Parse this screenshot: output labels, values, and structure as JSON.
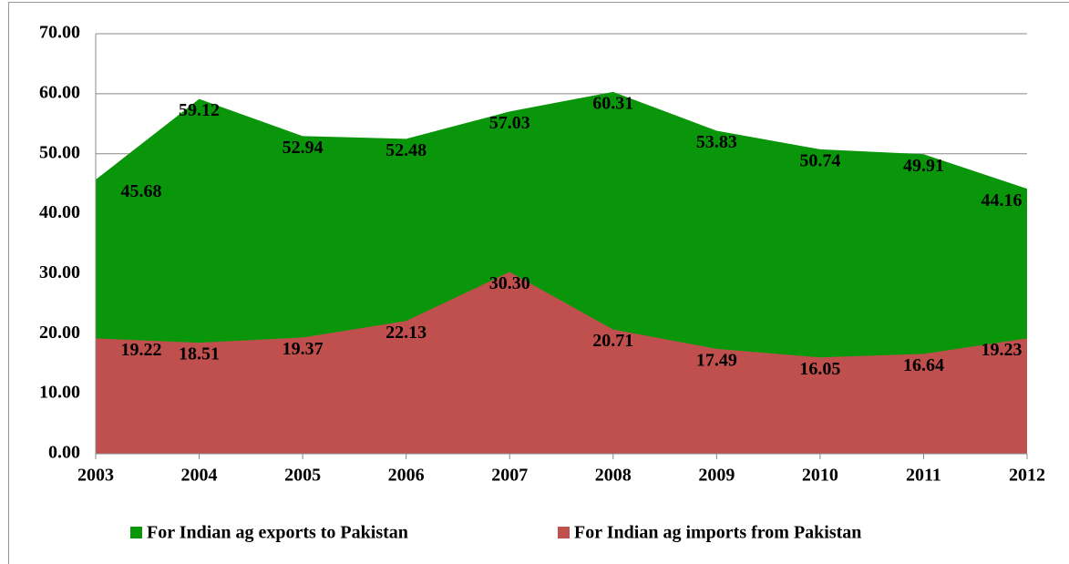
{
  "chart_data": {
    "type": "area",
    "categories": [
      "2003",
      "2004",
      "2005",
      "2006",
      "2007",
      "2008",
      "2009",
      "2010",
      "2011",
      "2012"
    ],
    "series": [
      {
        "name": "For Indian ag exports to Pakistan",
        "color": "#0a960a",
        "values": [
          45.68,
          59.12,
          52.94,
          52.48,
          57.03,
          60.31,
          53.83,
          50.74,
          49.91,
          44.16
        ]
      },
      {
        "name": "For Indian ag imports from Pakistan",
        "color": "#c0504d",
        "values": [
          19.22,
          18.51,
          19.37,
          22.13,
          30.3,
          20.71,
          17.49,
          16.05,
          16.64,
          19.23
        ]
      }
    ],
    "value_labels": [
      [
        "45.68",
        "59.12",
        "52.94",
        "52.48",
        "57.03",
        "60.31",
        "53.83",
        "50.74",
        "49.91",
        "44.16"
      ],
      [
        "19.22",
        "18.51",
        "19.37",
        "22.13",
        "30.30",
        "20.71",
        "17.49",
        "16.05",
        "16.64",
        "19.23"
      ]
    ],
    "ylim": [
      0,
      70
    ],
    "yticks": [
      {
        "value": 0,
        "label": "0.00"
      },
      {
        "value": 10,
        "label": "10.00"
      },
      {
        "value": 20,
        "label": "20.00"
      },
      {
        "value": 30,
        "label": "30.00"
      },
      {
        "value": 40,
        "label": "40.00"
      },
      {
        "value": 50,
        "label": "50.00"
      },
      {
        "value": 60,
        "label": "60.00"
      },
      {
        "value": 70,
        "label": "70.00"
      }
    ],
    "grid": true,
    "legend": "bottom"
  }
}
